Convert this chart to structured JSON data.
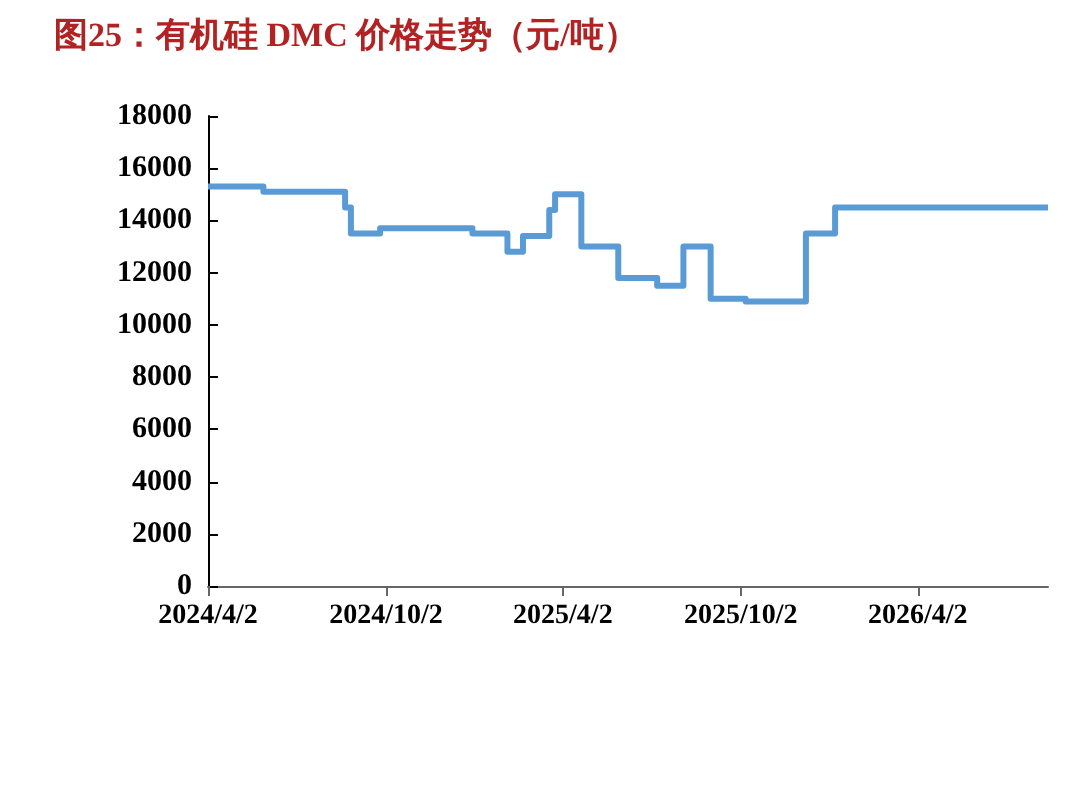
{
  "chart_data": {
    "type": "step",
    "title": "图25：有机硅 DMC 价格走势（元/吨）",
    "x": [
      "2024-04-02",
      "2024-05-29",
      "2024-08-21",
      "2024-08-27",
      "2024-09-26",
      "2024-12-30",
      "2025-02-04",
      "2025-02-20",
      "2025-03-19",
      "2025-03-25",
      "2025-04-21",
      "2025-05-29",
      "2025-07-08",
      "2025-08-04",
      "2025-09-01",
      "2025-10-07",
      "2025-12-08",
      "2026-01-07",
      "2026-08-14"
    ],
    "values": [
      15300,
      15100,
      14500,
      13500,
      13700,
      13500,
      12800,
      13400,
      14400,
      15000,
      13000,
      11800,
      11500,
      13000,
      11000,
      10900,
      13500,
      14500,
      14500
    ],
    "color": "#5b9bd5",
    "xlim": [
      "2024-04-02",
      "2026-08-14"
    ],
    "xticks": [
      {
        "value": "2024-04-02",
        "label": "2024/4/2"
      },
      {
        "value": "2024-10-02",
        "label": "2024/10/2"
      },
      {
        "value": "2025-04-02",
        "label": "2025/4/2"
      },
      {
        "value": "2025-10-02",
        "label": "2025/10/2"
      },
      {
        "value": "2026-04-02",
        "label": "2026/4/2"
      }
    ],
    "ylim": [
      0,
      18000
    ],
    "yticks": [
      0,
      2000,
      4000,
      6000,
      8000,
      10000,
      12000,
      14000,
      16000,
      18000
    ],
    "marker": "none",
    "line_style": "solid"
  }
}
